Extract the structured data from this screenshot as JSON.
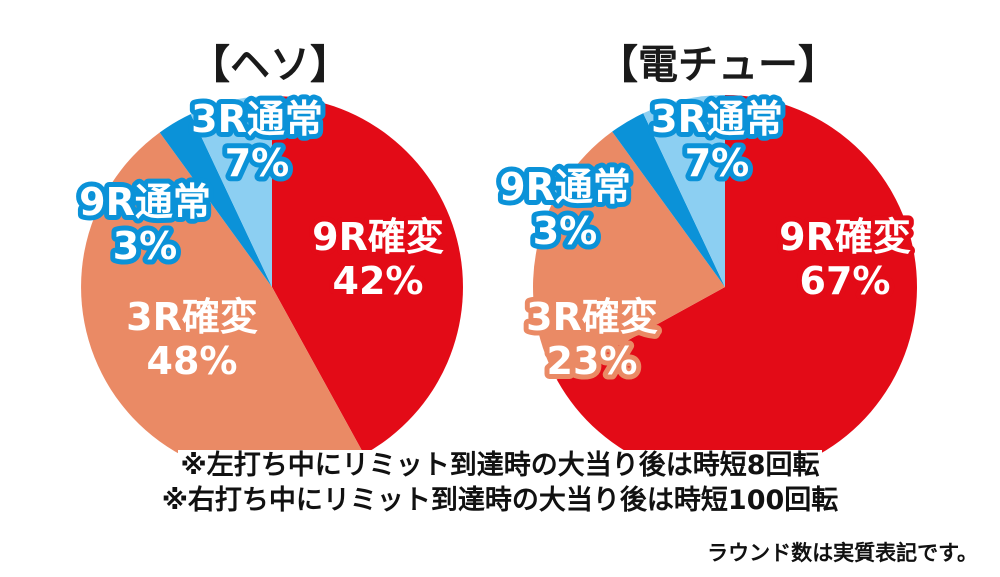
{
  "chart_data": [
    {
      "type": "pie",
      "title": "【ヘソ】",
      "slices": [
        {
          "label": "9R確変",
          "value": 42,
          "value_label": "42%",
          "color": "#e30b17"
        },
        {
          "label": "3R確変",
          "value": 48,
          "value_label": "48%",
          "color": "#ea8a65"
        },
        {
          "label": "9R通常",
          "value": 3,
          "value_label": "3%",
          "color": "#0b92d8"
        },
        {
          "label": "3R通常",
          "value": 7,
          "value_label": "7%",
          "color": "#8ccff2"
        }
      ]
    },
    {
      "type": "pie",
      "title": "【電チュー】",
      "slices": [
        {
          "label": "9R確変",
          "value": 67,
          "value_label": "67%",
          "color": "#e30b17"
        },
        {
          "label": "3R確変",
          "value": 23,
          "value_label": "23%",
          "color": "#ea8a65"
        },
        {
          "label": "9R通常",
          "value": 3,
          "value_label": "3%",
          "color": "#0b92d8"
        },
        {
          "label": "3R通常",
          "value": 7,
          "value_label": "7%",
          "color": "#8ccff2"
        }
      ]
    }
  ],
  "notes": [
    "※左打ち中にリミット到達時の大当り後は時短8回転",
    "※右打ち中にリミット到達時の大当り後は時短100回転"
  ],
  "footnote": "ラウンド数は実質表記です。"
}
